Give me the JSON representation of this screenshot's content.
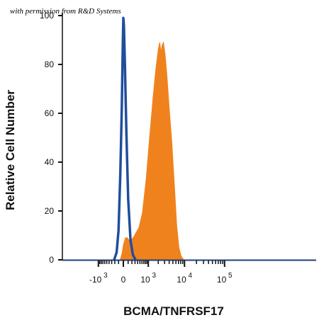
{
  "chart_data": {
    "type": "area",
    "xlabel": "BCMA/TNFRSF17",
    "ylabel": "Relative Cell Number",
    "ylim": [
      0,
      100
    ],
    "y_ticks": [
      0,
      20,
      40,
      60,
      80,
      100
    ],
    "x_scale": "biexponential",
    "x_ticks": [
      {
        "label": "-10",
        "exp": "3",
        "value": -1000
      },
      {
        "label": "0",
        "exp": "",
        "value": 0
      },
      {
        "label": "10",
        "exp": "3",
        "value": 1000
      },
      {
        "label": "10",
        "exp": "4",
        "value": 10000
      },
      {
        "label": "10",
        "exp": "5",
        "value": 100000
      }
    ],
    "series": [
      {
        "style": "outline",
        "color": "#1f4e9c",
        "points": [
          [
            -220,
            0
          ],
          [
            -150,
            3
          ],
          [
            -100,
            12
          ],
          [
            -60,
            35
          ],
          [
            -30,
            62
          ],
          [
            -10,
            88
          ],
          [
            0,
            99
          ],
          [
            10,
            96
          ],
          [
            30,
            80
          ],
          [
            60,
            52
          ],
          [
            100,
            25
          ],
          [
            160,
            8
          ],
          [
            230,
            2
          ],
          [
            320,
            0
          ]
        ]
      },
      {
        "style": "filled",
        "color": "#f0821e",
        "points": [
          [
            -60,
            0
          ],
          [
            -20,
            3
          ],
          [
            0,
            6
          ],
          [
            40,
            9
          ],
          [
            80,
            9
          ],
          [
            120,
            8
          ],
          [
            170,
            8
          ],
          [
            240,
            9
          ],
          [
            330,
            11
          ],
          [
            450,
            13
          ],
          [
            620,
            19
          ],
          [
            850,
            33
          ],
          [
            1100,
            50
          ],
          [
            1400,
            66
          ],
          [
            1700,
            78
          ],
          [
            2000,
            86
          ],
          [
            2200,
            89
          ],
          [
            2400,
            85
          ],
          [
            2600,
            88
          ],
          [
            2800,
            89
          ],
          [
            3100,
            84
          ],
          [
            3500,
            75
          ],
          [
            4000,
            62
          ],
          [
            4700,
            48
          ],
          [
            5500,
            30
          ],
          [
            6300,
            14
          ],
          [
            7200,
            5
          ],
          [
            8200,
            1.5
          ],
          [
            9500,
            0
          ]
        ]
      }
    ]
  },
  "watermark": "with permission from R&D Systems"
}
